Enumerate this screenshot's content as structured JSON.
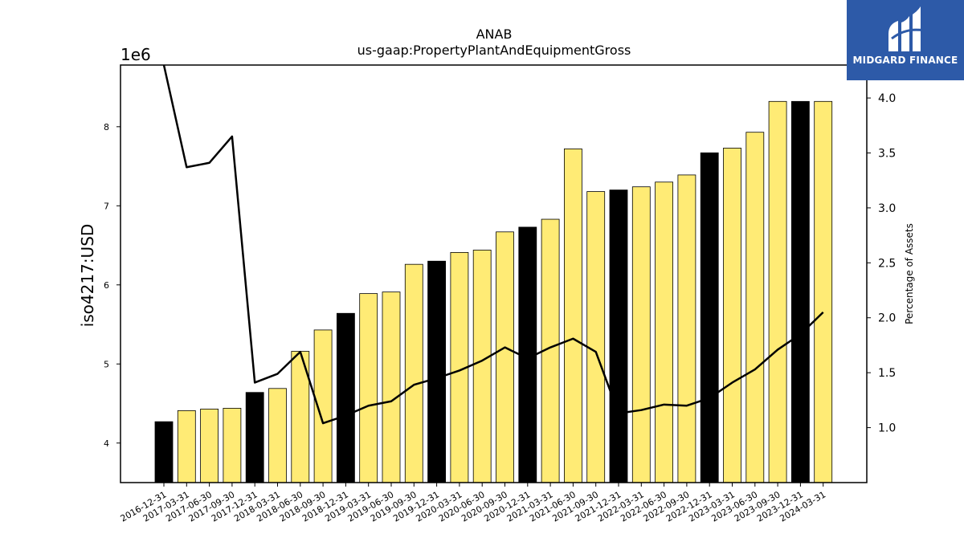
{
  "brand": {
    "name": "MIDGARD FINANCE",
    "bg_color": "#2d5aa8"
  },
  "chart_data": {
    "type": "bar",
    "title": "ANAB",
    "subtitle": "us-gaap:PropertyPlantAndEquipmentGross",
    "ylabel": "iso4217:USD",
    "y_offset_label": "1e6",
    "y2label": "Percentage of Assets",
    "ylim": [
      3500000,
      8780000
    ],
    "y2lim": [
      0.5,
      4.3
    ],
    "yticks": [
      4,
      5,
      6,
      7,
      8
    ],
    "y2ticks": [
      1.0,
      1.5,
      2.0,
      2.5,
      3.0,
      3.5,
      4.0
    ],
    "grid": false,
    "legend": "none",
    "bar_colors": {
      "annual": "#000000",
      "quarterly": "#ffeb75"
    },
    "categories": [
      "2016-12-31",
      "2017-03-31",
      "2017-06-30",
      "2017-09-30",
      "2017-12-31",
      "2018-03-31",
      "2018-06-30",
      "2018-09-30",
      "2018-12-31",
      "2019-03-31",
      "2019-06-30",
      "2019-09-30",
      "2019-12-31",
      "2020-03-31",
      "2020-06-30",
      "2020-09-30",
      "2020-12-31",
      "2021-03-31",
      "2021-06-30",
      "2021-09-30",
      "2021-12-31",
      "2022-03-31",
      "2022-06-30",
      "2022-09-30",
      "2022-12-31",
      "2023-03-31",
      "2023-06-30",
      "2023-09-30",
      "2023-12-31",
      "2024-03-31"
    ],
    "series": [
      {
        "type": "bar",
        "axis": "left",
        "values": [
          4270000,
          4410000,
          4430000,
          4440000,
          4640000,
          4690000,
          5160000,
          5430000,
          5640000,
          5890000,
          5910000,
          6260000,
          6300000,
          6410000,
          6440000,
          6670000,
          6730000,
          6830000,
          7720000,
          7180000,
          7200000,
          7240000,
          7300000,
          7390000,
          7670000,
          7730000,
          7930000,
          8320000,
          8320000,
          8320000
        ],
        "annual": [
          true,
          false,
          false,
          false,
          true,
          false,
          false,
          false,
          true,
          false,
          false,
          false,
          true,
          false,
          false,
          false,
          true,
          false,
          false,
          false,
          true,
          false,
          false,
          false,
          true,
          false,
          false,
          false,
          true,
          false
        ]
      },
      {
        "type": "line",
        "axis": "right",
        "color": "#000000",
        "values": [
          4.6,
          3.37,
          3.41,
          3.65,
          1.41,
          1.49,
          1.69,
          1.04,
          1.11,
          1.2,
          1.24,
          1.39,
          1.45,
          1.52,
          1.61,
          1.73,
          1.63,
          1.73,
          1.81,
          1.69,
          1.13,
          1.16,
          1.21,
          1.2,
          1.27,
          1.41,
          1.53,
          1.71,
          1.85,
          2.05
        ]
      }
    ]
  }
}
